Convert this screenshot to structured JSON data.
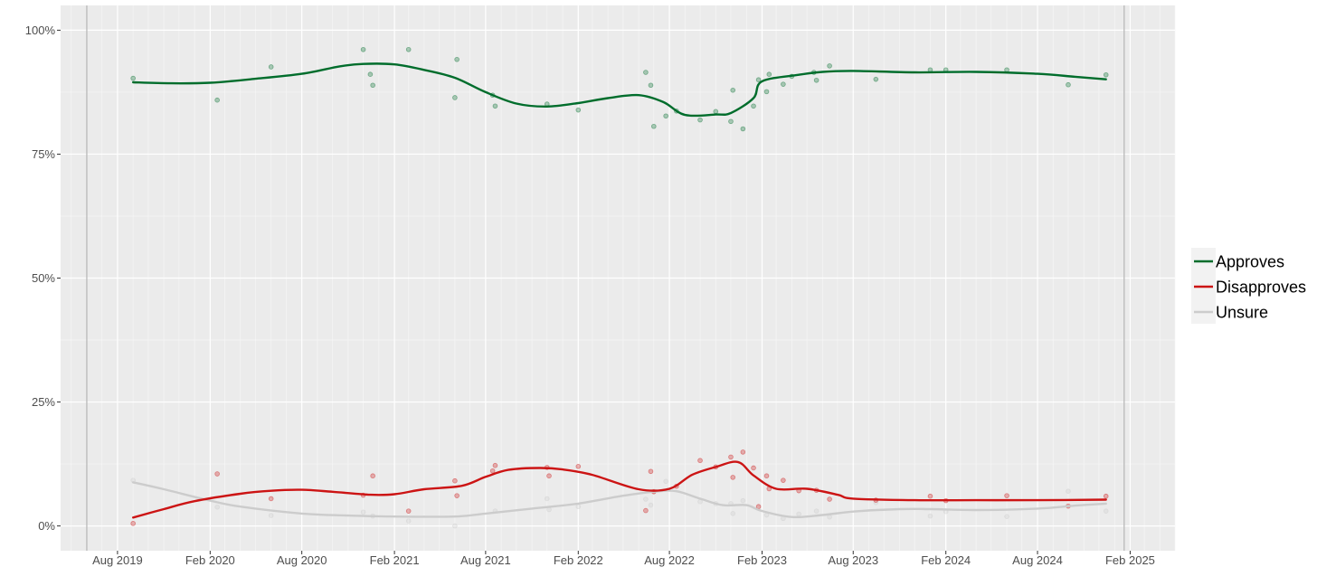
{
  "chart_data": {
    "type": "line",
    "title": "",
    "xlabel": "",
    "ylabel": "",
    "x_axis": {
      "type": "date",
      "range": [
        "2019-04-10",
        "2025-05-01"
      ],
      "ticks": [
        {
          "date": "2019-08-01",
          "label": "Aug 2019"
        },
        {
          "date": "2020-02-01",
          "label": "Feb 2020"
        },
        {
          "date": "2020-08-01",
          "label": "Aug 2020"
        },
        {
          "date": "2021-02-01",
          "label": "Feb 2021"
        },
        {
          "date": "2021-08-01",
          "label": "Aug 2021"
        },
        {
          "date": "2022-02-01",
          "label": "Feb 2022"
        },
        {
          "date": "2022-08-01",
          "label": "Aug 2022"
        },
        {
          "date": "2023-02-01",
          "label": "Feb 2023"
        },
        {
          "date": "2023-08-01",
          "label": "Aug 2023"
        },
        {
          "date": "2024-02-01",
          "label": "Feb 2024"
        },
        {
          "date": "2024-08-01",
          "label": "Aug 2024"
        },
        {
          "date": "2025-02-01",
          "label": "Feb 2025"
        }
      ],
      "reference_lines": [
        "2019-06-01",
        "2025-01-20"
      ]
    },
    "y_axis": {
      "range": [
        -5,
        105
      ],
      "ticks": [
        {
          "value": 0,
          "label": "0%"
        },
        {
          "value": 25,
          "label": "25%"
        },
        {
          "value": 50,
          "label": "50%"
        },
        {
          "value": 75,
          "label": "75%"
        },
        {
          "value": 100,
          "label": "100%"
        }
      ]
    },
    "grid": true,
    "legend": {
      "position": "right"
    },
    "series": [
      {
        "name": "Approves",
        "color": "#006d2c",
        "line": [
          [
            "2019-09-01",
            89.5
          ],
          [
            "2019-11-15",
            89.3
          ],
          [
            "2020-02-01",
            89.4
          ],
          [
            "2020-05-01",
            90.2
          ],
          [
            "2020-08-01",
            91.2
          ],
          [
            "2020-10-15",
            92.7
          ],
          [
            "2020-12-01",
            93.2
          ],
          [
            "2021-02-01",
            93.1
          ],
          [
            "2021-04-01",
            92.0
          ],
          [
            "2021-06-01",
            90.4
          ],
          [
            "2021-08-01",
            87.5
          ],
          [
            "2021-10-01",
            85.2
          ],
          [
            "2021-12-01",
            84.6
          ],
          [
            "2022-02-01",
            85.3
          ],
          [
            "2022-04-01",
            86.3
          ],
          [
            "2022-06-01",
            86.9
          ],
          [
            "2022-07-20",
            85.5
          ],
          [
            "2022-09-01",
            82.9
          ],
          [
            "2022-11-01",
            83.0
          ],
          [
            "2022-12-01",
            83.3
          ],
          [
            "2023-01-15",
            86.3
          ],
          [
            "2023-02-01",
            89.7
          ],
          [
            "2023-04-15",
            91.0
          ],
          [
            "2023-06-01",
            91.6
          ],
          [
            "2023-08-01",
            91.8
          ],
          [
            "2023-12-01",
            91.5
          ],
          [
            "2024-04-01",
            91.6
          ],
          [
            "2024-08-01",
            91.2
          ],
          [
            "2024-10-15",
            90.6
          ],
          [
            "2024-12-15",
            90.1
          ]
        ],
        "points": [
          [
            "2019-09-01",
            90.3
          ],
          [
            "2020-02-15",
            85.9
          ],
          [
            "2020-06-01",
            92.6
          ],
          [
            "2020-12-01",
            96.1
          ],
          [
            "2020-12-15",
            91.1
          ],
          [
            "2020-12-20",
            88.9
          ],
          [
            "2021-03-01",
            96.1
          ],
          [
            "2021-06-01",
            86.4
          ],
          [
            "2021-06-05",
            94.1
          ],
          [
            "2021-08-15",
            86.9
          ],
          [
            "2021-08-20",
            84.7
          ],
          [
            "2021-12-01",
            85.1
          ],
          [
            "2022-02-01",
            83.9
          ],
          [
            "2022-06-15",
            91.5
          ],
          [
            "2022-06-25",
            88.9
          ],
          [
            "2022-07-01",
            80.6
          ],
          [
            "2022-07-25",
            82.7
          ],
          [
            "2022-08-15",
            83.7
          ],
          [
            "2022-10-01",
            81.9
          ],
          [
            "2022-11-01",
            83.6
          ],
          [
            "2022-12-01",
            81.6
          ],
          [
            "2022-12-05",
            87.9
          ],
          [
            "2022-12-25",
            80.1
          ],
          [
            "2023-01-15",
            84.7
          ],
          [
            "2023-01-25",
            90.0
          ],
          [
            "2023-02-10",
            87.6
          ],
          [
            "2023-02-15",
            91.1
          ],
          [
            "2023-03-15",
            89.1
          ],
          [
            "2023-04-01",
            90.7
          ],
          [
            "2023-05-15",
            91.5
          ],
          [
            "2023-05-20",
            89.9
          ],
          [
            "2023-06-15",
            92.8
          ],
          [
            "2023-09-15",
            90.1
          ],
          [
            "2024-01-01",
            92.0
          ],
          [
            "2024-02-01",
            92.0
          ],
          [
            "2024-06-01",
            92.0
          ],
          [
            "2024-10-01",
            89.0
          ],
          [
            "2024-12-15",
            91.0
          ]
        ]
      },
      {
        "name": "Disapproves",
        "color": "#cc1414",
        "line": [
          [
            "2019-09-01",
            1.7
          ],
          [
            "2019-11-01",
            3.4
          ],
          [
            "2020-01-01",
            5.0
          ],
          [
            "2020-04-01",
            6.5
          ],
          [
            "2020-06-01",
            7.1
          ],
          [
            "2020-08-01",
            7.3
          ],
          [
            "2020-10-01",
            6.9
          ],
          [
            "2020-12-15",
            6.3
          ],
          [
            "2021-02-01",
            6.4
          ],
          [
            "2021-04-01",
            7.4
          ],
          [
            "2021-06-15",
            8.1
          ],
          [
            "2021-08-01",
            9.9
          ],
          [
            "2021-09-15",
            11.3
          ],
          [
            "2021-11-15",
            11.7
          ],
          [
            "2022-01-01",
            11.4
          ],
          [
            "2022-03-01",
            10.3
          ],
          [
            "2022-06-01",
            7.4
          ],
          [
            "2022-08-01",
            7.5
          ],
          [
            "2022-09-15",
            10.3
          ],
          [
            "2022-11-01",
            11.9
          ],
          [
            "2022-12-15",
            12.9
          ],
          [
            "2023-01-15",
            10.2
          ],
          [
            "2023-03-01",
            7.5
          ],
          [
            "2023-05-01",
            7.5
          ],
          [
            "2023-07-01",
            6.3
          ],
          [
            "2023-08-01",
            5.5
          ],
          [
            "2023-12-01",
            5.2
          ],
          [
            "2024-04-01",
            5.2
          ],
          [
            "2024-08-01",
            5.2
          ],
          [
            "2024-12-15",
            5.3
          ]
        ],
        "points": [
          [
            "2019-09-01",
            0.5
          ],
          [
            "2020-02-15",
            10.5
          ],
          [
            "2020-06-01",
            5.5
          ],
          [
            "2020-12-01",
            6.2
          ],
          [
            "2020-12-20",
            10.1
          ],
          [
            "2021-03-01",
            3.0
          ],
          [
            "2021-06-01",
            9.1
          ],
          [
            "2021-06-05",
            6.1
          ],
          [
            "2021-08-15",
            11.1
          ],
          [
            "2021-08-20",
            12.2
          ],
          [
            "2021-12-01",
            11.8
          ],
          [
            "2021-12-05",
            10.1
          ],
          [
            "2022-02-01",
            12.0
          ],
          [
            "2022-06-15",
            3.1
          ],
          [
            "2022-06-25",
            11.0
          ],
          [
            "2022-07-01",
            6.9
          ],
          [
            "2022-08-15",
            8.0
          ],
          [
            "2022-10-01",
            13.2
          ],
          [
            "2022-11-01",
            11.9
          ],
          [
            "2022-12-01",
            13.9
          ],
          [
            "2022-12-05",
            9.8
          ],
          [
            "2022-12-25",
            14.9
          ],
          [
            "2023-01-15",
            11.7
          ],
          [
            "2023-01-25",
            3.9
          ],
          [
            "2023-02-10",
            10.1
          ],
          [
            "2023-02-15",
            7.5
          ],
          [
            "2023-03-15",
            9.2
          ],
          [
            "2023-04-15",
            7.1
          ],
          [
            "2023-05-20",
            7.2
          ],
          [
            "2023-06-15",
            5.4
          ],
          [
            "2023-09-15",
            5.2
          ],
          [
            "2024-01-01",
            6.0
          ],
          [
            "2024-02-01",
            5.1
          ],
          [
            "2024-06-01",
            6.1
          ],
          [
            "2024-10-01",
            4.0
          ],
          [
            "2024-12-15",
            6.0
          ]
        ]
      },
      {
        "name": "Unsure",
        "color": "#cccccc",
        "line": [
          [
            "2019-09-01",
            8.8
          ],
          [
            "2019-11-01",
            7.4
          ],
          [
            "2020-02-01",
            5.1
          ],
          [
            "2020-04-01",
            3.9
          ],
          [
            "2020-08-01",
            2.5
          ],
          [
            "2020-11-01",
            2.1
          ],
          [
            "2021-02-01",
            1.9
          ],
          [
            "2021-06-01",
            1.9
          ],
          [
            "2021-08-01",
            2.5
          ],
          [
            "2021-11-01",
            3.5
          ],
          [
            "2022-02-01",
            4.5
          ],
          [
            "2022-05-01",
            6.1
          ],
          [
            "2022-07-01",
            6.9
          ],
          [
            "2022-08-15",
            7.0
          ],
          [
            "2022-10-01",
            5.5
          ],
          [
            "2022-11-15",
            4.2
          ],
          [
            "2023-01-01",
            4.2
          ],
          [
            "2023-02-01",
            3.0
          ],
          [
            "2023-04-01",
            1.8
          ],
          [
            "2023-06-01",
            2.2
          ],
          [
            "2023-08-01",
            2.9
          ],
          [
            "2023-11-01",
            3.4
          ],
          [
            "2024-01-01",
            3.4
          ],
          [
            "2024-04-01",
            3.2
          ],
          [
            "2024-08-01",
            3.5
          ],
          [
            "2024-10-15",
            4.1
          ],
          [
            "2024-12-15",
            4.5
          ]
        ],
        "points": [
          [
            "2019-09-01",
            9.2
          ],
          [
            "2020-02-15",
            3.8
          ],
          [
            "2020-06-01",
            2.1
          ],
          [
            "2020-12-01",
            2.8
          ],
          [
            "2020-12-20",
            2.0
          ],
          [
            "2021-03-01",
            1.0
          ],
          [
            "2021-06-01",
            0.0
          ],
          [
            "2021-08-20",
            3.0
          ],
          [
            "2021-12-01",
            5.5
          ],
          [
            "2021-12-05",
            3.3
          ],
          [
            "2022-02-01",
            3.9
          ],
          [
            "2022-06-15",
            5.4
          ],
          [
            "2022-06-25",
            4.2
          ],
          [
            "2022-07-01",
            7.0
          ],
          [
            "2022-07-25",
            9.0
          ],
          [
            "2022-10-01",
            4.9
          ],
          [
            "2022-11-01",
            4.5
          ],
          [
            "2022-12-01",
            4.5
          ],
          [
            "2022-12-05",
            2.5
          ],
          [
            "2022-12-25",
            5.1
          ],
          [
            "2023-02-10",
            2.2
          ],
          [
            "2023-03-15",
            1.5
          ],
          [
            "2023-04-15",
            2.4
          ],
          [
            "2023-05-20",
            3.0
          ],
          [
            "2023-06-15",
            1.8
          ],
          [
            "2023-09-15",
            4.7
          ],
          [
            "2024-01-01",
            2.0
          ],
          [
            "2024-02-01",
            2.9
          ],
          [
            "2024-06-01",
            1.9
          ],
          [
            "2024-10-01",
            7.0
          ],
          [
            "2024-12-15",
            3.0
          ]
        ]
      }
    ]
  }
}
